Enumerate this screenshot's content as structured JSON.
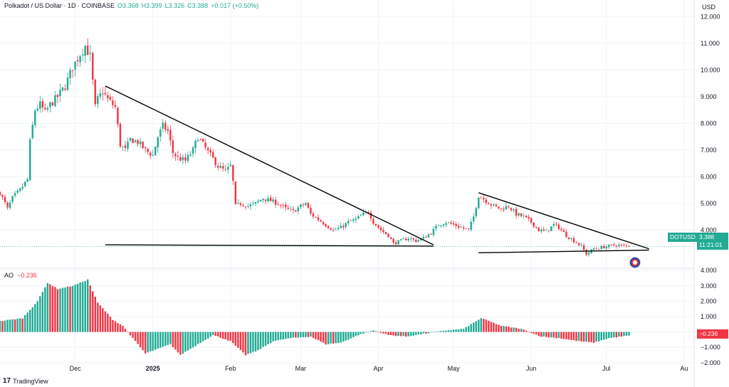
{
  "header": {
    "symbol": "Polkadot / US Dollar · 1D · COINBASE",
    "o": "O3.368",
    "h": "H3.399",
    "l": "L3.326",
    "c": "C3.388",
    "change": "+0.017 (+0.50%)"
  },
  "currency": "USD",
  "price_tag": {
    "name": "DOTUSD",
    "value": "3.388",
    "countdown": "11:21:01"
  },
  "indicator": {
    "name": "AO",
    "value": "−0.236",
    "tag": "−0.236"
  },
  "brand": {
    "logo": "17",
    "name": "TradingView"
  },
  "colors": {
    "up": "#22ab94",
    "down": "#f23645",
    "trend": "#000000",
    "grid": "#f0f3fa"
  },
  "chart_data": [
    {
      "type": "candlestick",
      "title": "Polkadot / US Dollar · 1D · COINBASE",
      "y_axis_label": "USD",
      "ylim": [
        2.6,
        12.3
      ],
      "y_ticks": [
        "12.000",
        "11.000",
        "10.000",
        "9.000",
        "8.000",
        "7.000",
        "6.000",
        "5.000",
        "4.000"
      ],
      "x_tick_labels": [
        "Dec",
        "2025",
        "Feb",
        "Mar",
        "Apr",
        "May",
        "Jun",
        "Jul",
        "Au"
      ],
      "x_range_dates": [
        "2024-11-01",
        "2025-08-05"
      ],
      "x_tick_dates": [
        "2024-12-01",
        "2025-01-01",
        "2025-02-01",
        "2025-03-01",
        "2025-04-01",
        "2025-05-01",
        "2025-06-01",
        "2025-07-01",
        "2025-08-01"
      ],
      "price_path": [
        [
          "2024-11-01",
          5.4
        ],
        [
          "2024-11-04",
          4.8
        ],
        [
          "2024-11-06",
          5.2
        ],
        [
          "2024-11-09",
          5.5
        ],
        [
          "2024-11-12",
          5.9
        ],
        [
          "2024-11-13",
          7.3
        ],
        [
          "2024-11-15",
          8.5
        ],
        [
          "2024-11-17",
          8.7
        ],
        [
          "2024-11-19",
          8.4
        ],
        [
          "2024-11-21",
          8.7
        ],
        [
          "2024-11-24",
          9.0
        ],
        [
          "2024-11-27",
          9.4
        ],
        [
          "2024-11-30",
          10.1
        ],
        [
          "2024-12-03",
          10.6
        ],
        [
          "2024-12-05",
          10.9
        ],
        [
          "2024-12-07",
          10.5
        ],
        [
          "2024-12-09",
          8.6
        ],
        [
          "2024-12-10",
          8.9
        ],
        [
          "2024-12-12",
          9.2
        ],
        [
          "2024-12-14",
          8.9
        ],
        [
          "2024-12-17",
          8.6
        ],
        [
          "2024-12-19",
          7.2
        ],
        [
          "2024-12-21",
          7.0
        ],
        [
          "2024-12-23",
          7.4
        ],
        [
          "2024-12-26",
          7.3
        ],
        [
          "2024-12-29",
          7.0
        ],
        [
          "2025-01-01",
          6.8
        ],
        [
          "2025-01-03",
          7.5
        ],
        [
          "2025-01-05",
          7.9
        ],
        [
          "2025-01-07",
          7.7
        ],
        [
          "2025-01-09",
          6.9
        ],
        [
          "2025-01-11",
          6.7
        ],
        [
          "2025-01-14",
          6.6
        ],
        [
          "2025-01-17",
          7.0
        ],
        [
          "2025-01-19",
          7.5
        ],
        [
          "2025-01-21",
          7.2
        ],
        [
          "2025-01-24",
          6.8
        ],
        [
          "2025-01-27",
          6.4
        ],
        [
          "2025-01-30",
          6.2
        ],
        [
          "2025-02-01",
          6.4
        ],
        [
          "2025-02-02",
          5.8
        ],
        [
          "2025-02-03",
          4.9
        ],
        [
          "2025-02-05",
          5.0
        ],
        [
          "2025-02-08",
          4.9
        ],
        [
          "2025-02-11",
          5.0
        ],
        [
          "2025-02-14",
          5.2
        ],
        [
          "2025-02-17",
          5.1
        ],
        [
          "2025-02-20",
          5.0
        ],
        [
          "2025-02-23",
          4.8
        ],
        [
          "2025-02-26",
          4.7
        ],
        [
          "2025-03-01",
          4.9
        ],
        [
          "2025-03-03",
          5.0
        ],
        [
          "2025-03-05",
          4.6
        ],
        [
          "2025-03-08",
          4.4
        ],
        [
          "2025-03-11",
          4.2
        ],
        [
          "2025-03-14",
          4.0
        ],
        [
          "2025-03-17",
          4.1
        ],
        [
          "2025-03-20",
          4.3
        ],
        [
          "2025-03-23",
          4.4
        ],
        [
          "2025-03-26",
          4.6
        ],
        [
          "2025-03-28",
          4.7
        ],
        [
          "2025-03-30",
          4.3
        ],
        [
          "2025-04-02",
          4.0
        ],
        [
          "2025-04-05",
          3.8
        ],
        [
          "2025-04-07",
          3.5
        ],
        [
          "2025-04-10",
          3.6
        ],
        [
          "2025-04-13",
          3.7
        ],
        [
          "2025-04-16",
          3.6
        ],
        [
          "2025-04-19",
          3.7
        ],
        [
          "2025-04-22",
          3.9
        ],
        [
          "2025-04-25",
          4.2
        ],
        [
          "2025-04-28",
          4.3
        ],
        [
          "2025-05-01",
          4.2
        ],
        [
          "2025-05-04",
          4.1
        ],
        [
          "2025-05-07",
          4.0
        ],
        [
          "2025-05-09",
          4.5
        ],
        [
          "2025-05-11",
          5.3
        ],
        [
          "2025-05-14",
          5.1
        ],
        [
          "2025-05-17",
          4.9
        ],
        [
          "2025-05-20",
          4.8
        ],
        [
          "2025-05-23",
          4.9
        ],
        [
          "2025-05-26",
          4.6
        ],
        [
          "2025-05-29",
          4.5
        ],
        [
          "2025-06-01",
          4.3
        ],
        [
          "2025-06-04",
          4.0
        ],
        [
          "2025-06-07",
          3.95
        ],
        [
          "2025-06-10",
          4.2
        ],
        [
          "2025-06-12",
          4.1
        ],
        [
          "2025-06-15",
          3.8
        ],
        [
          "2025-06-18",
          3.6
        ],
        [
          "2025-06-21",
          3.4
        ],
        [
          "2025-06-23",
          3.1
        ],
        [
          "2025-06-26",
          3.3
        ],
        [
          "2025-06-29",
          3.35
        ],
        [
          "2025-07-02",
          3.4
        ],
        [
          "2025-07-05",
          3.45
        ],
        [
          "2025-07-08",
          3.4
        ],
        [
          "2025-07-10",
          3.39
        ]
      ],
      "trendlines": [
        {
          "name": "upper-trendline-1",
          "from": [
            "2024-12-13",
            9.4
          ],
          "to": [
            "2025-04-23",
            3.45
          ]
        },
        {
          "name": "support-line-1",
          "from": [
            "2024-12-13",
            3.45
          ],
          "to": [
            "2025-04-23",
            3.4
          ]
        },
        {
          "name": "upper-trendline-2",
          "from": [
            "2025-05-11",
            5.4
          ],
          "to": [
            "2025-07-18",
            3.3
          ]
        },
        {
          "name": "support-line-2",
          "from": [
            "2025-05-11",
            3.15
          ],
          "to": [
            "2025-07-18",
            3.25
          ]
        }
      ],
      "last_price": 3.388
    },
    {
      "type": "bar",
      "title": "AO",
      "ylim": [
        -2.1,
        4.1
      ],
      "y_ticks": [
        "4.000",
        "3.000",
        "2.000",
        "1.000",
        "0.000",
        "−1.000",
        "−2.000"
      ],
      "ao_path": [
        [
          "2024-11-01",
          0.7
        ],
        [
          "2024-11-10",
          0.9
        ],
        [
          "2024-11-16",
          2.0
        ],
        [
          "2024-11-20",
          3.2
        ],
        [
          "2024-11-24",
          2.8
        ],
        [
          "2024-11-30",
          3.0
        ],
        [
          "2024-12-06",
          3.4
        ],
        [
          "2024-12-10",
          1.9
        ],
        [
          "2024-12-16",
          0.8
        ],
        [
          "2024-12-20",
          0.4
        ],
        [
          "2024-12-24",
          -0.4
        ],
        [
          "2024-12-29",
          -1.4
        ],
        [
          "2025-01-03",
          -1.1
        ],
        [
          "2025-01-08",
          -0.8
        ],
        [
          "2025-01-12",
          -1.5
        ],
        [
          "2025-01-18",
          -0.9
        ],
        [
          "2025-01-25",
          -0.2
        ],
        [
          "2025-02-01",
          -0.6
        ],
        [
          "2025-02-07",
          -1.5
        ],
        [
          "2025-02-12",
          -1.2
        ],
        [
          "2025-02-18",
          -0.6
        ],
        [
          "2025-02-25",
          -0.4
        ],
        [
          "2025-03-05",
          -0.3
        ],
        [
          "2025-03-11",
          -0.8
        ],
        [
          "2025-03-17",
          -0.7
        ],
        [
          "2025-03-24",
          -0.2
        ],
        [
          "2025-03-30",
          0.1
        ],
        [
          "2025-04-05",
          -0.2
        ],
        [
          "2025-04-12",
          -0.3
        ],
        [
          "2025-04-20",
          -0.1
        ],
        [
          "2025-04-28",
          0.1
        ],
        [
          "2025-05-05",
          0.2
        ],
        [
          "2025-05-12",
          0.9
        ],
        [
          "2025-05-20",
          0.4
        ],
        [
          "2025-05-28",
          0.2
        ],
        [
          "2025-06-05",
          -0.3
        ],
        [
          "2025-06-12",
          -0.4
        ],
        [
          "2025-06-20",
          -0.6
        ],
        [
          "2025-06-26",
          -0.7
        ],
        [
          "2025-07-02",
          -0.4
        ],
        [
          "2025-07-07",
          -0.3
        ],
        [
          "2025-07-10",
          -0.24
        ]
      ],
      "last_value": -0.236
    }
  ]
}
